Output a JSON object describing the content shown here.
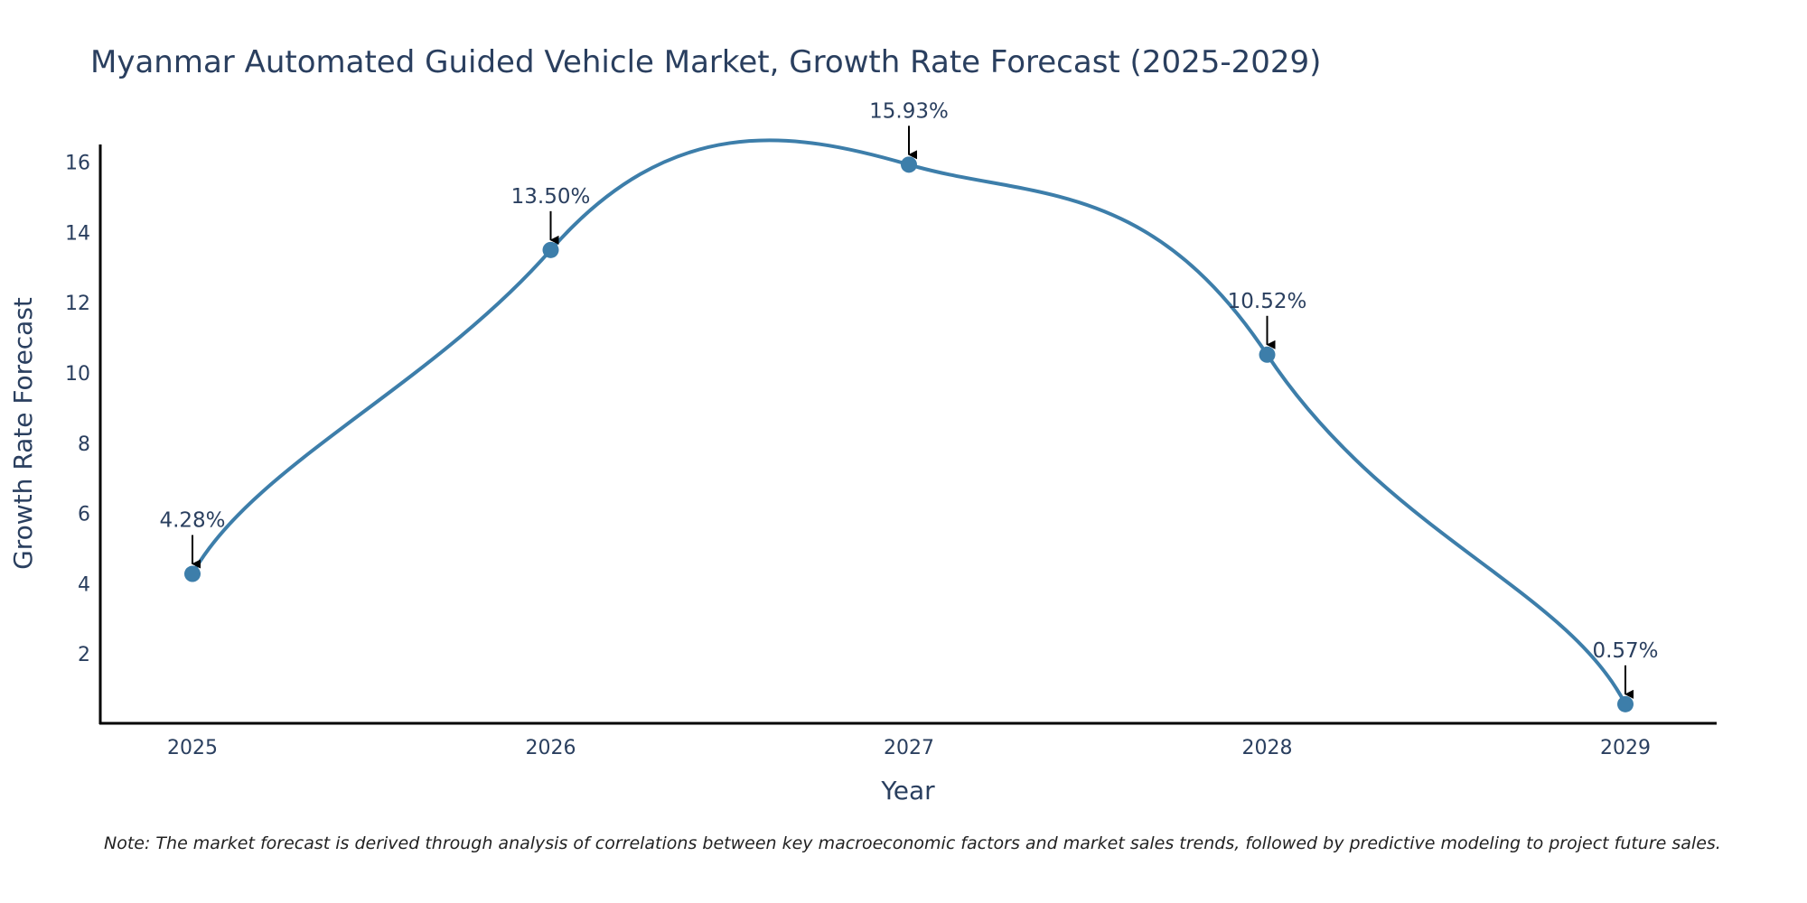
{
  "chart_data": {
    "type": "line",
    "title": "Myanmar Automated Guided Vehicle Market, Growth Rate Forecast (2025-2029)",
    "xlabel": "Year",
    "ylabel": "Growth Rate Forecast",
    "categories": [
      "2025",
      "2026",
      "2027",
      "2028",
      "2029"
    ],
    "values": [
      4.28,
      13.5,
      15.93,
      10.52,
      0.57
    ],
    "data_labels": [
      "4.28%",
      "13.50%",
      "15.93%",
      "10.52%",
      "0.57%"
    ],
    "y_ticks": [
      2,
      4,
      6,
      8,
      10,
      12,
      14,
      16
    ],
    "ylim": [
      0,
      16.5
    ],
    "line_color": "#3d7eaa",
    "marker_color": "#3d7eaa",
    "grid": false,
    "note": "Note: The market forecast is derived through analysis of correlations between key macroeconomic factors and market sales trends, followed by predictive modeling to project future sales."
  }
}
